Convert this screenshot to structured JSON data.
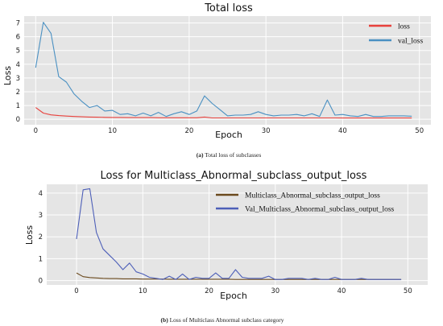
{
  "chart_data": [
    {
      "type": "line",
      "title": "Total loss",
      "xlabel": "Epoch",
      "ylabel": "Loss",
      "caption_prefix": "(a)",
      "caption_text": " Total loss of subclasses",
      "xlim": [
        -1.5,
        51.5
      ],
      "ylim": [
        -0.4,
        7.5
      ],
      "xticks": [
        0,
        10,
        20,
        30,
        40,
        50
      ],
      "yticks": [
        0,
        1,
        2,
        3,
        4,
        5,
        6,
        7
      ],
      "grid": true,
      "legend_position": "top-right",
      "series": [
        {
          "name": "loss",
          "color": "#e8413c",
          "values": [
            0.85,
            0.45,
            0.32,
            0.27,
            0.23,
            0.2,
            0.18,
            0.16,
            0.15,
            0.14,
            0.13,
            0.13,
            0.12,
            0.12,
            0.12,
            0.12,
            0.11,
            0.11,
            0.11,
            0.11,
            0.11,
            0.11,
            0.16,
            0.1,
            0.1,
            0.1,
            0.1,
            0.1,
            0.1,
            0.1,
            0.1,
            0.1,
            0.1,
            0.1,
            0.1,
            0.1,
            0.1,
            0.1,
            0.1,
            0.1,
            0.09,
            0.09,
            0.09,
            0.09,
            0.09,
            0.09,
            0.09,
            0.09,
            0.09,
            0.09
          ]
        },
        {
          "name": "val_loss",
          "color": "#4a90c2",
          "values": [
            3.75,
            7.05,
            6.25,
            3.1,
            2.7,
            1.85,
            1.3,
            0.85,
            1.0,
            0.6,
            0.65,
            0.35,
            0.4,
            0.25,
            0.45,
            0.25,
            0.5,
            0.2,
            0.4,
            0.55,
            0.35,
            0.6,
            1.7,
            1.15,
            0.7,
            0.25,
            0.3,
            0.3,
            0.35,
            0.55,
            0.35,
            0.25,
            0.3,
            0.3,
            0.35,
            0.25,
            0.4,
            0.2,
            1.4,
            0.3,
            0.35,
            0.25,
            0.2,
            0.35,
            0.2,
            0.2,
            0.25,
            0.25,
            0.25,
            0.22
          ]
        }
      ]
    },
    {
      "type": "line",
      "title": "Loss for Multiclass_Abnormal_subclass_output_loss",
      "xlabel": "Epoch",
      "ylabel": "Loss",
      "caption_prefix": "(b)",
      "caption_text": " Loss of Multiclass Abnormal subclass category",
      "xlim": [
        -4.5,
        53
      ],
      "ylim": [
        -0.2,
        4.4
      ],
      "xticks": [
        0,
        10,
        20,
        30,
        40,
        50
      ],
      "yticks": [
        0,
        1,
        2,
        3,
        4
      ],
      "grid": true,
      "legend_position": "top-right",
      "series": [
        {
          "name": "Multiclass_Abnormal_subclass_output_loss",
          "color": "#6b4a1e",
          "values": [
            0.35,
            0.18,
            0.14,
            0.12,
            0.1,
            0.09,
            0.09,
            0.08,
            0.08,
            0.08,
            0.07,
            0.07,
            0.07,
            0.07,
            0.06,
            0.06,
            0.06,
            0.06,
            0.06,
            0.06,
            0.06,
            0.06,
            0.06,
            0.06,
            0.05,
            0.05,
            0.05,
            0.05,
            0.05,
            0.05,
            0.05,
            0.05,
            0.05,
            0.05,
            0.05,
            0.05,
            0.05,
            0.05,
            0.05,
            0.05,
            0.05,
            0.05,
            0.05,
            0.05,
            0.05,
            0.05,
            0.05,
            0.05,
            0.05,
            0.05
          ]
        },
        {
          "name": "Val_Multiclass_Abnormal_subclass_output_loss",
          "color": "#4d5fb8",
          "values": [
            1.9,
            4.15,
            4.2,
            2.2,
            1.45,
            1.15,
            0.85,
            0.5,
            0.8,
            0.4,
            0.3,
            0.15,
            0.1,
            0.05,
            0.2,
            0.05,
            0.3,
            0.05,
            0.15,
            0.1,
            0.1,
            0.35,
            0.1,
            0.1,
            0.5,
            0.15,
            0.1,
            0.1,
            0.1,
            0.2,
            0.05,
            0.05,
            0.1,
            0.1,
            0.1,
            0.05,
            0.1,
            0.05,
            0.05,
            0.15,
            0.05,
            0.05,
            0.05,
            0.1,
            0.05,
            0.05,
            0.05,
            0.05,
            0.05,
            0.05
          ]
        }
      ]
    }
  ]
}
